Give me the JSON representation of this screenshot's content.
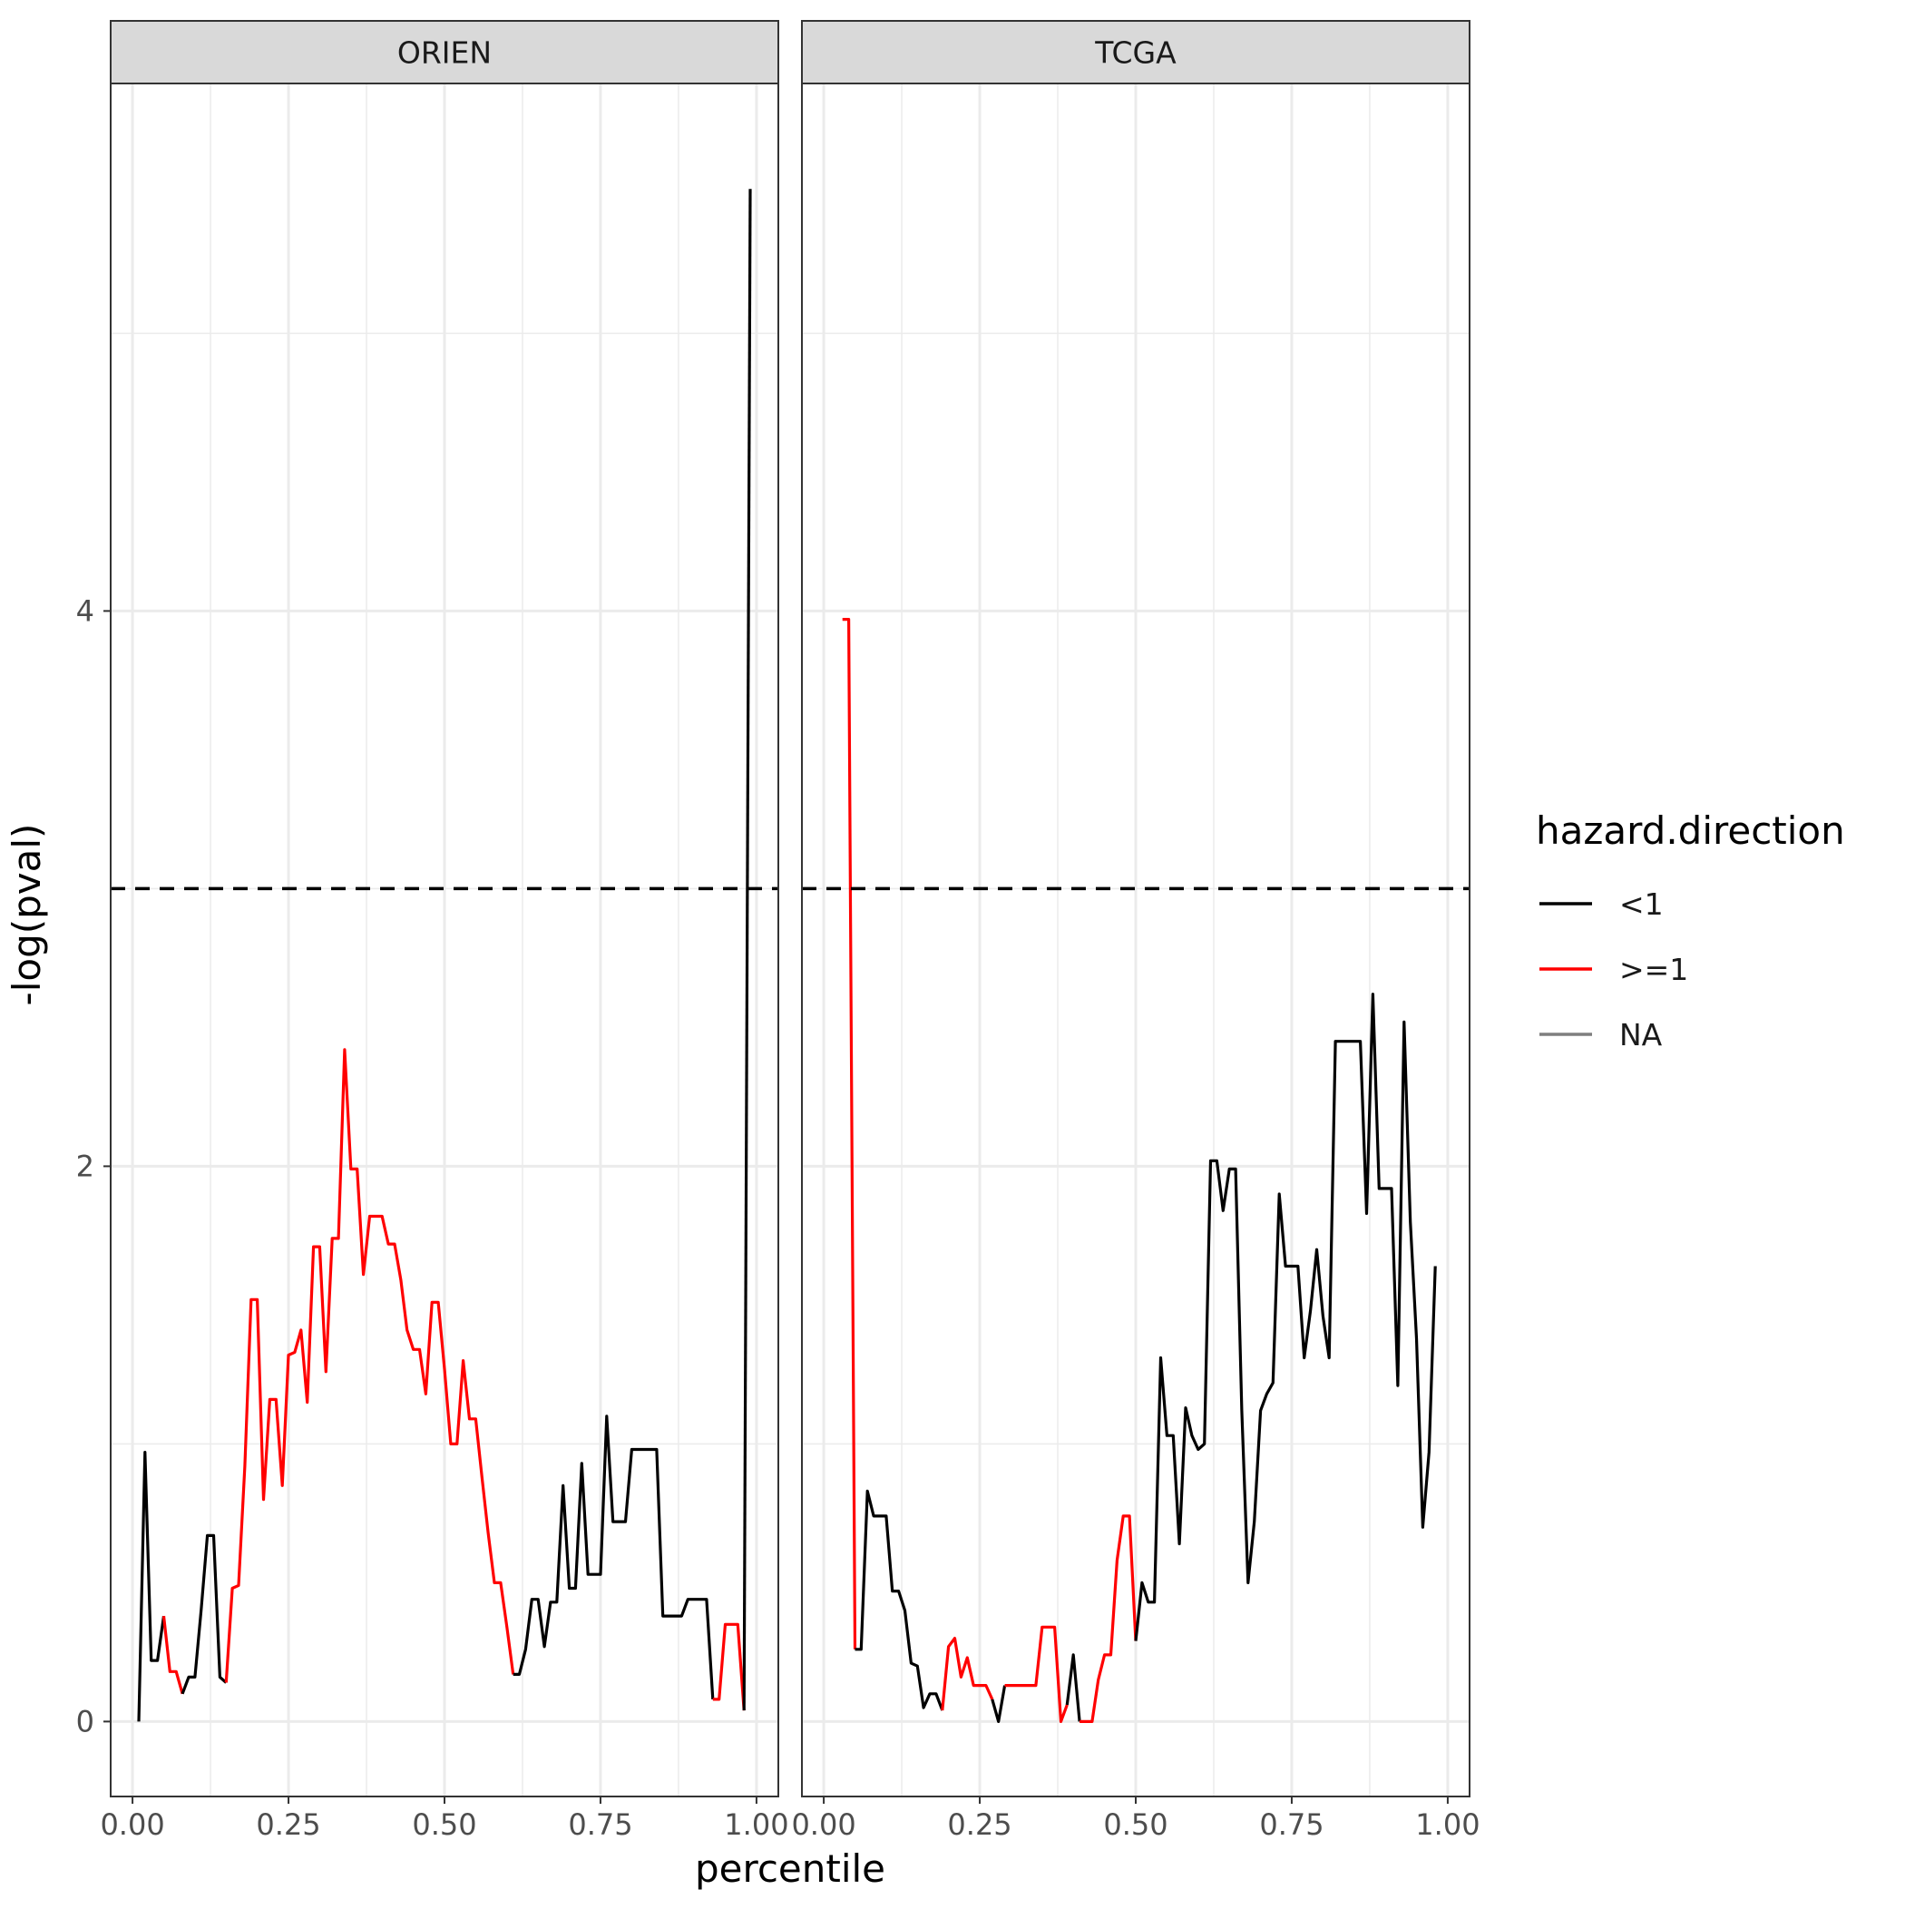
{
  "chart_data": {
    "type": "line",
    "xlabel": "percentile",
    "ylabel": "-log(pval)",
    "xlim": [
      -0.035,
      1.035
    ],
    "ylim": [
      -0.27,
      5.9
    ],
    "x_ticks": [
      0,
      0.25,
      0.5,
      0.75,
      1.0
    ],
    "x_tick_labels": [
      "0.00",
      "0.25",
      "0.50",
      "0.75",
      "1.00"
    ],
    "y_ticks": [
      0,
      2,
      4
    ],
    "y_tick_labels": [
      "0",
      "2",
      "4"
    ],
    "reference_line": {
      "y": 3,
      "style": "dashed",
      "color": "#000000"
    },
    "grid": true,
    "legend": {
      "title": "hazard.direction",
      "position": "right",
      "entries": [
        {
          "label": "<1",
          "color": "#000000"
        },
        {
          "label": ">=1",
          "color": "#ff0000"
        },
        {
          "label": "NA",
          "color": "#7f7f7f"
        }
      ]
    },
    "panels": [
      {
        "label": "ORIEN",
        "segments": [
          {
            "direction": "<1",
            "points": [
              [
                0.01,
                0.0
              ],
              [
                0.02,
                0.97
              ],
              [
                0.03,
                0.22
              ],
              [
                0.04,
                0.22
              ],
              [
                0.05,
                0.38
              ]
            ]
          },
          {
            "direction": ">=1",
            "points": [
              [
                0.05,
                0.38
              ],
              [
                0.06,
                0.18
              ],
              [
                0.07,
                0.18
              ],
              [
                0.08,
                0.1
              ]
            ]
          },
          {
            "direction": "<1",
            "points": [
              [
                0.08,
                0.1
              ],
              [
                0.09,
                0.16
              ],
              [
                0.1,
                0.16
              ],
              [
                0.11,
                0.4
              ],
              [
                0.12,
                0.67
              ],
              [
                0.13,
                0.67
              ],
              [
                0.14,
                0.16
              ],
              [
                0.15,
                0.14
              ]
            ]
          },
          {
            "direction": ">=1",
            "points": [
              [
                0.15,
                0.14
              ],
              [
                0.16,
                0.48
              ],
              [
                0.17,
                0.49
              ],
              [
                0.18,
                0.92
              ],
              [
                0.19,
                1.52
              ],
              [
                0.2,
                1.52
              ],
              [
                0.21,
                0.8
              ],
              [
                0.22,
                1.16
              ],
              [
                0.23,
                1.16
              ],
              [
                0.24,
                0.85
              ],
              [
                0.25,
                1.32
              ],
              [
                0.26,
                1.33
              ],
              [
                0.27,
                1.41
              ],
              [
                0.28,
                1.15
              ],
              [
                0.29,
                1.71
              ],
              [
                0.3,
                1.71
              ],
              [
                0.31,
                1.26
              ],
              [
                0.32,
                1.74
              ],
              [
                0.33,
                1.74
              ],
              [
                0.34,
                2.42
              ],
              [
                0.35,
                1.99
              ],
              [
                0.36,
                1.99
              ],
              [
                0.37,
                1.61
              ],
              [
                0.38,
                1.82
              ],
              [
                0.39,
                1.82
              ],
              [
                0.4,
                1.82
              ],
              [
                0.41,
                1.72
              ],
              [
                0.42,
                1.72
              ],
              [
                0.43,
                1.59
              ],
              [
                0.44,
                1.41
              ],
              [
                0.45,
                1.34
              ],
              [
                0.46,
                1.34
              ],
              [
                0.47,
                1.18
              ],
              [
                0.48,
                1.51
              ],
              [
                0.49,
                1.51
              ],
              [
                0.5,
                1.27
              ],
              [
                0.51,
                1.0
              ],
              [
                0.52,
                1.0
              ],
              [
                0.53,
                1.3
              ],
              [
                0.54,
                1.09
              ],
              [
                0.55,
                1.09
              ],
              [
                0.56,
                0.88
              ],
              [
                0.57,
                0.68
              ],
              [
                0.58,
                0.5
              ],
              [
                0.59,
                0.5
              ],
              [
                0.6,
                0.34
              ],
              [
                0.61,
                0.17
              ]
            ]
          },
          {
            "direction": "<1",
            "points": [
              [
                0.61,
                0.17
              ],
              [
                0.62,
                0.17
              ],
              [
                0.63,
                0.26
              ],
              [
                0.64,
                0.44
              ],
              [
                0.65,
                0.44
              ],
              [
                0.66,
                0.27
              ],
              [
                0.67,
                0.43
              ],
              [
                0.68,
                0.43
              ],
              [
                0.69,
                0.85
              ],
              [
                0.7,
                0.48
              ],
              [
                0.71,
                0.48
              ],
              [
                0.72,
                0.93
              ],
              [
                0.73,
                0.53
              ],
              [
                0.74,
                0.53
              ],
              [
                0.75,
                0.53
              ],
              [
                0.76,
                1.1
              ],
              [
                0.77,
                0.72
              ],
              [
                0.78,
                0.72
              ],
              [
                0.79,
                0.72
              ],
              [
                0.8,
                0.98
              ],
              [
                0.81,
                0.98
              ],
              [
                0.82,
                0.98
              ],
              [
                0.83,
                0.98
              ],
              [
                0.84,
                0.98
              ],
              [
                0.85,
                0.38
              ],
              [
                0.86,
                0.38
              ],
              [
                0.87,
                0.38
              ],
              [
                0.88,
                0.38
              ],
              [
                0.89,
                0.44
              ],
              [
                0.9,
                0.44
              ],
              [
                0.91,
                0.44
              ],
              [
                0.92,
                0.44
              ],
              [
                0.93,
                0.08
              ]
            ]
          },
          {
            "direction": ">=1",
            "points": [
              [
                0.93,
                0.08
              ],
              [
                0.94,
                0.08
              ],
              [
                0.95,
                0.35
              ],
              [
                0.96,
                0.35
              ],
              [
                0.97,
                0.35
              ],
              [
                0.98,
                0.04
              ]
            ]
          },
          {
            "direction": "<1",
            "points": [
              [
                0.98,
                0.04
              ],
              [
                0.99,
                5.52
              ]
            ]
          }
        ]
      },
      {
        "label": "TCGA",
        "segments": [
          {
            "direction": ">=1",
            "points": [
              [
                0.03,
                3.97
              ],
              [
                0.04,
                3.97
              ],
              [
                0.05,
                0.26
              ]
            ]
          },
          {
            "direction": "<1",
            "points": [
              [
                0.05,
                0.26
              ],
              [
                0.06,
                0.26
              ],
              [
                0.07,
                0.83
              ],
              [
                0.08,
                0.74
              ],
              [
                0.09,
                0.74
              ],
              [
                0.1,
                0.74
              ],
              [
                0.11,
                0.47
              ],
              [
                0.12,
                0.47
              ],
              [
                0.13,
                0.4
              ],
              [
                0.14,
                0.21
              ],
              [
                0.15,
                0.2
              ],
              [
                0.16,
                0.05
              ],
              [
                0.17,
                0.1
              ],
              [
                0.18,
                0.1
              ],
              [
                0.19,
                0.04
              ]
            ]
          },
          {
            "direction": ">=1",
            "points": [
              [
                0.19,
                0.04
              ],
              [
                0.2,
                0.27
              ],
              [
                0.21,
                0.3
              ],
              [
                0.22,
                0.16
              ],
              [
                0.23,
                0.23
              ],
              [
                0.24,
                0.13
              ],
              [
                0.25,
                0.13
              ],
              [
                0.26,
                0.13
              ],
              [
                0.27,
                0.08
              ]
            ]
          },
          {
            "direction": "<1",
            "points": [
              [
                0.27,
                0.08
              ],
              [
                0.28,
                0.0
              ],
              [
                0.29,
                0.13
              ]
            ]
          },
          {
            "direction": ">=1",
            "points": [
              [
                0.29,
                0.13
              ],
              [
                0.3,
                0.13
              ],
              [
                0.31,
                0.13
              ],
              [
                0.32,
                0.13
              ],
              [
                0.33,
                0.13
              ],
              [
                0.34,
                0.13
              ],
              [
                0.35,
                0.34
              ],
              [
                0.36,
                0.34
              ],
              [
                0.37,
                0.34
              ],
              [
                0.38,
                0.0
              ],
              [
                0.39,
                0.06
              ]
            ]
          },
          {
            "direction": "<1",
            "points": [
              [
                0.39,
                0.06
              ],
              [
                0.4,
                0.24
              ],
              [
                0.41,
                0.0
              ]
            ]
          },
          {
            "direction": ">=1",
            "points": [
              [
                0.41,
                0.0
              ],
              [
                0.42,
                0.0
              ],
              [
                0.43,
                0.0
              ],
              [
                0.44,
                0.15
              ],
              [
                0.45,
                0.24
              ],
              [
                0.46,
                0.24
              ],
              [
                0.47,
                0.58
              ],
              [
                0.48,
                0.74
              ],
              [
                0.49,
                0.74
              ],
              [
                0.5,
                0.29
              ]
            ]
          },
          {
            "direction": "<1",
            "points": [
              [
                0.5,
                0.29
              ],
              [
                0.51,
                0.5
              ],
              [
                0.52,
                0.43
              ],
              [
                0.53,
                0.43
              ],
              [
                0.54,
                1.31
              ],
              [
                0.55,
                1.03
              ],
              [
                0.56,
                1.03
              ],
              [
                0.57,
                0.64
              ],
              [
                0.58,
                1.13
              ],
              [
                0.59,
                1.03
              ],
              [
                0.6,
                0.98
              ],
              [
                0.61,
                1.0
              ],
              [
                0.62,
                2.02
              ],
              [
                0.63,
                2.02
              ],
              [
                0.64,
                1.84
              ],
              [
                0.65,
                1.99
              ],
              [
                0.66,
                1.99
              ],
              [
                0.67,
                1.12
              ],
              [
                0.68,
                0.5
              ],
              [
                0.69,
                0.72
              ],
              [
                0.7,
                1.12
              ],
              [
                0.71,
                1.18
              ],
              [
                0.72,
                1.22
              ],
              [
                0.73,
                1.9
              ],
              [
                0.74,
                1.64
              ],
              [
                0.75,
                1.64
              ],
              [
                0.76,
                1.64
              ],
              [
                0.77,
                1.31
              ],
              [
                0.78,
                1.48
              ],
              [
                0.79,
                1.7
              ],
              [
                0.8,
                1.46
              ],
              [
                0.81,
                1.31
              ],
              [
                0.82,
                2.45
              ],
              [
                0.83,
                2.45
              ],
              [
                0.84,
                2.45
              ],
              [
                0.85,
                2.45
              ],
              [
                0.86,
                2.45
              ],
              [
                0.87,
                1.83
              ],
              [
                0.88,
                2.62
              ],
              [
                0.89,
                1.92
              ],
              [
                0.9,
                1.92
              ],
              [
                0.91,
                1.92
              ],
              [
                0.92,
                1.21
              ],
              [
                0.93,
                2.52
              ],
              [
                0.94,
                1.8
              ],
              [
                0.95,
                1.38
              ],
              [
                0.96,
                0.7
              ],
              [
                0.97,
                0.97
              ],
              [
                0.98,
                1.64
              ]
            ]
          }
        ]
      }
    ]
  }
}
